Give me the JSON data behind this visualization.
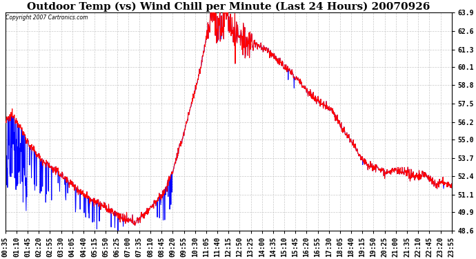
{
  "title": "Outdoor Temp (vs) Wind Chill per Minute (Last 24 Hours) 20070926",
  "copyright": "Copyright 2007 Cartronics.com",
  "y_ticks": [
    48.6,
    49.9,
    51.1,
    52.4,
    53.7,
    55.0,
    56.2,
    57.5,
    58.8,
    60.1,
    61.3,
    62.6,
    63.9
  ],
  "y_min": 48.6,
  "y_max": 63.9,
  "x_labels": [
    "00:35",
    "01:10",
    "01:45",
    "02:20",
    "02:55",
    "03:30",
    "04:05",
    "04:40",
    "05:15",
    "05:50",
    "06:25",
    "07:00",
    "07:35",
    "08:10",
    "08:45",
    "09:20",
    "09:55",
    "10:30",
    "11:05",
    "11:40",
    "12:15",
    "12:50",
    "13:25",
    "14:00",
    "14:35",
    "15:10",
    "15:45",
    "16:20",
    "16:55",
    "17:30",
    "18:05",
    "18:40",
    "19:15",
    "19:50",
    "20:25",
    "21:00",
    "21:35",
    "22:10",
    "22:45",
    "23:20",
    "23:55"
  ],
  "background_color": "#ffffff",
  "grid_color": "#c8c8c8",
  "line_red": "#ff0000",
  "line_blue": "#0000ff",
  "title_fontsize": 11,
  "tick_fontsize": 7
}
